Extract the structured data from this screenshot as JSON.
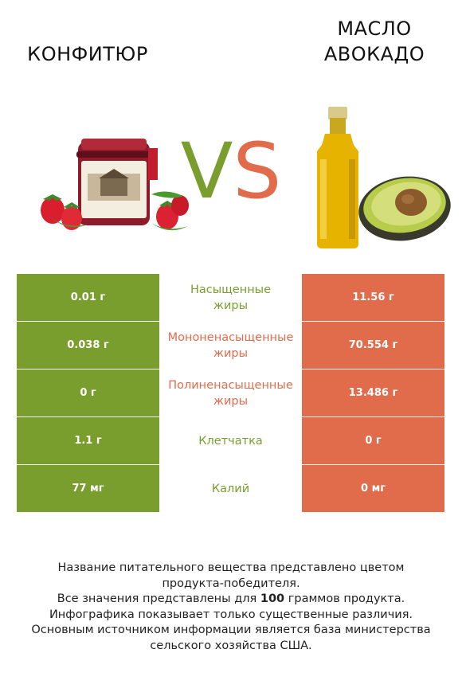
{
  "header": {
    "left_title": "КОНФИТЮР",
    "right_title_line1": "МАСЛО",
    "right_title_line2": "АВОКАДО",
    "vs_v": "V",
    "vs_s": "S"
  },
  "colors": {
    "left_accent": "#7a9e2e",
    "right_accent": "#e06c4c"
  },
  "rows": [
    {
      "left": "0.01 г",
      "nutrient_line1": "Насыщенные",
      "nutrient_line2": "жиры",
      "right": "11.56 г",
      "winner": "left"
    },
    {
      "left": "0.038 г",
      "nutrient_line1": "Мононенасыщенные",
      "nutrient_line2": "жиры",
      "right": "70.554 г",
      "winner": "right"
    },
    {
      "left": "0 г",
      "nutrient_line1": "Полиненасыщенные",
      "nutrient_line2": "жиры",
      "right": "13.486 г",
      "winner": "right"
    },
    {
      "left": "1.1 г",
      "nutrient_line1": "Клетчатка",
      "nutrient_line2": "",
      "right": "0 г",
      "winner": "left"
    },
    {
      "left": "77 мг",
      "nutrient_line1": "Калий",
      "nutrient_line2": "",
      "right": "0 мг",
      "winner": "left"
    }
  ],
  "footer": {
    "line1": "Название питательного вещества представлено цветом",
    "line2": "продукта-победителя.",
    "line3_pre": "Все значения представлены для ",
    "line3_bold": "100",
    "line3_post": " граммов продукта.",
    "line4": "Инфографика показывает только существенные различия.",
    "line5": "Основным источником информации является база министерства",
    "line6": "сельского хозяйства США."
  },
  "images": {
    "left_icon": "strawberry-jam-jar-icon",
    "right_icon": "avocado-oil-bottle-icon"
  }
}
